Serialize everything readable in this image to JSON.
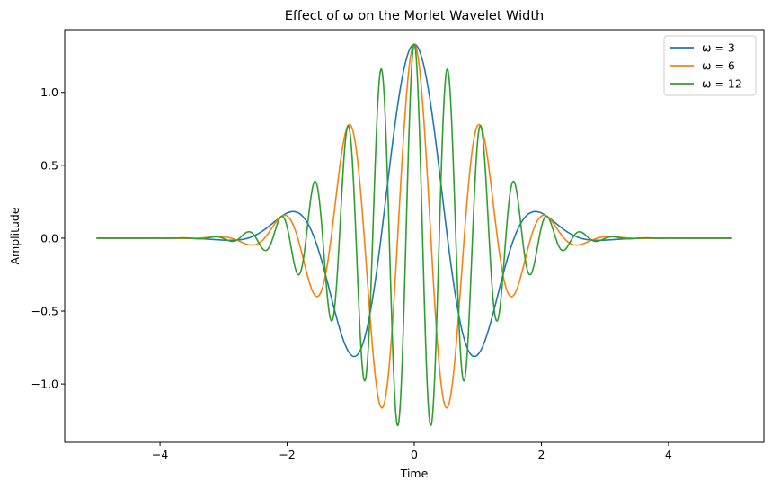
{
  "chart_data": {
    "type": "line",
    "title": "Effect of ω on the Morlet Wavelet Width",
    "xlabel": "Time",
    "ylabel": "Amplitude",
    "xlim": [
      -5.5,
      5.5
    ],
    "ylim": [
      -1.4,
      1.43
    ],
    "xticks": [
      -4,
      -2,
      0,
      2,
      4
    ],
    "xtick_labels": [
      "−4",
      "−2",
      "0",
      "2",
      "4"
    ],
    "yticks": [
      -1.0,
      -0.5,
      0.0,
      0.5,
      1.0
    ],
    "ytick_labels": [
      "−1.0",
      "−0.5",
      "0.0",
      "0.5",
      "1.0"
    ],
    "grid": false,
    "legend_position": "top-right",
    "series": [
      {
        "name": "ω = 3",
        "color": "#1f77b4",
        "omega": 3,
        "x": [
          -5.0,
          -4.5,
          -4.0,
          -3.5,
          -3.0,
          -2.5,
          -2.25,
          -2.0,
          -1.75,
          -1.5,
          -1.25,
          -1.0,
          -0.75,
          -0.5,
          -0.25,
          0.0,
          0.25,
          0.5,
          0.75,
          1.0,
          1.25,
          1.5,
          1.75,
          2.0,
          2.25,
          2.5,
          3.0,
          3.5,
          4.0,
          4.5,
          5.0
        ],
        "y": [
          0.0,
          0.0,
          0.0,
          0.0,
          0.01,
          0.09,
          0.15,
          0.18,
          0.12,
          -0.08,
          -0.43,
          -0.79,
          -0.6,
          0.15,
          0.86,
          1.33,
          0.86,
          0.15,
          -0.6,
          -0.79,
          -0.43,
          -0.08,
          0.12,
          0.18,
          0.15,
          0.09,
          0.01,
          0.0,
          0.0,
          0.0,
          0.0
        ]
      },
      {
        "name": "ω = 6",
        "color": "#ff7f0e",
        "omega": 6,
        "x": [
          -5.0,
          -4.0,
          -3.5,
          -3.0,
          -2.5,
          -2.1,
          -1.6,
          -1.3,
          -1.05,
          -0.8,
          -0.53,
          -0.25,
          0.0,
          0.25,
          0.53,
          0.8,
          1.05,
          1.3,
          1.6,
          2.1,
          2.5,
          3.0,
          3.5,
          4.0,
          5.0
        ],
        "y": [
          0.0,
          0.0,
          0.0,
          0.01,
          -0.05,
          0.15,
          -0.39,
          0.0,
          0.78,
          0.0,
          -1.16,
          0.0,
          1.33,
          0.0,
          -1.16,
          0.0,
          0.78,
          0.0,
          -0.39,
          0.15,
          -0.05,
          0.01,
          0.0,
          0.0,
          0.0
        ]
      },
      {
        "name": "ω = 12",
        "color": "#2ca02c",
        "omega": 12,
        "x": [
          -5.0,
          -3.5,
          -3.15,
          -2.9,
          -2.6,
          -2.35,
          -2.1,
          -1.85,
          -1.57,
          -1.31,
          -1.05,
          -0.79,
          -0.52,
          -0.26,
          0.0,
          0.26,
          0.52,
          0.79,
          1.05,
          1.31,
          1.57,
          1.85,
          2.1,
          2.35,
          2.6,
          2.9,
          3.15,
          3.5,
          5.0
        ],
        "y": [
          0.0,
          0.0,
          0.01,
          -0.02,
          0.04,
          -0.08,
          0.16,
          -0.25,
          0.39,
          -0.56,
          0.77,
          -0.97,
          1.16,
          -1.28,
          1.33,
          -1.28,
          1.16,
          -0.97,
          0.77,
          -0.56,
          0.39,
          -0.25,
          0.16,
          -0.08,
          0.04,
          -0.02,
          0.01,
          0.0,
          0.0
        ]
      }
    ]
  }
}
